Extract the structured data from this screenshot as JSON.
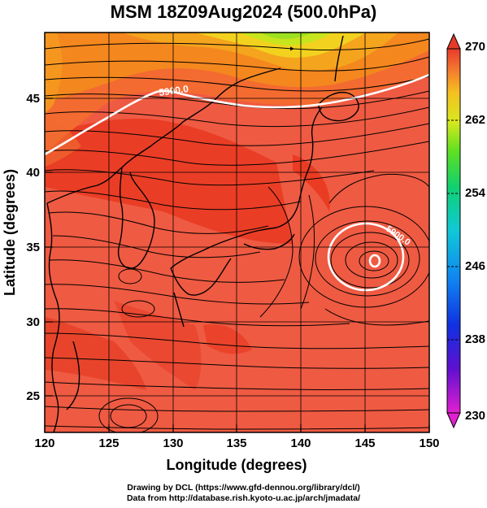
{
  "title": "MSM 18Z09Aug2024 (500.0hPa)",
  "xlabel": "Longitude (degrees)",
  "ylabel": "Latitude  (degrees)",
  "x_ticks": [
    "120",
    "125",
    "130",
    "135",
    "140",
    "145",
    "150"
  ],
  "y_ticks": [
    "25",
    "30",
    "35",
    "40",
    "45"
  ],
  "colorbar_ticks": [
    "270",
    "262",
    "254",
    "246",
    "238",
    "230"
  ],
  "contour_labels": [
    "5900.0",
    "5900.0"
  ],
  "credit_line1": "Drawing by DCL (https://www.gfd-dennou.org/library/dcl/)",
  "credit_line2": "Data from http://database.rish.kyoto-u.ac.jp/arch/jmadata/",
  "colors": {
    "field_main": "#ef5a42",
    "field_warm": "#e8341c",
    "field_orange": "#f4871e",
    "field_yellow": "#f2d21e",
    "field_green": "#b5e61d",
    "contour": "#ffffff"
  }
}
